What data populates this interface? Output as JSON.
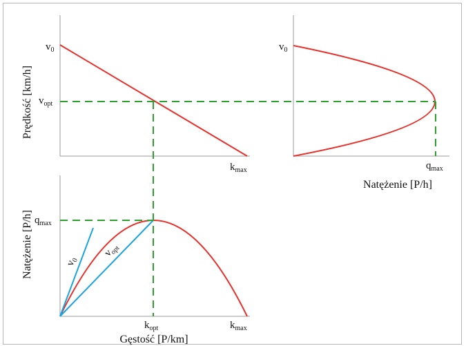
{
  "colors": {
    "curve": "#e8302a",
    "ray": "#1aa3e0",
    "guide": "#2ca02c",
    "axis": "#9a9a9a"
  },
  "panels": {
    "speed_density": {
      "ylabel": "Prędkość [km/h]",
      "y_v0": {
        "main": "v",
        "sub": "0"
      },
      "y_vopt": {
        "main": "v",
        "sub": "opt"
      },
      "x_kmax": {
        "main": "k",
        "sub": "max"
      }
    },
    "speed_flow": {
      "xlabel": "Natężenie [P/h]",
      "y_v0": {
        "main": "v",
        "sub": "0"
      },
      "x_qmax": {
        "main": "q",
        "sub": "max"
      }
    },
    "flow_density": {
      "ylabel": "Natężenie [P/h]",
      "xlabel": "Gęstość [P/km]",
      "y_qmax": {
        "main": "q",
        "sub": "max"
      },
      "x_kopt": {
        "main": "k",
        "sub": "opt"
      },
      "x_kmax": {
        "main": "k",
        "sub": "max"
      },
      "ray_v0": {
        "main": "v",
        "sub": "0"
      },
      "ray_vopt": {
        "main": "v",
        "sub": "opt"
      }
    }
  }
}
